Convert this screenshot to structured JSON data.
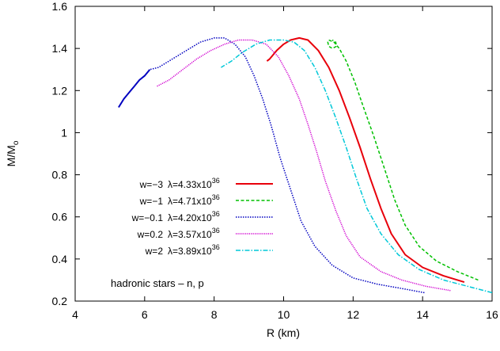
{
  "chart_data": {
    "type": "line",
    "xlabel": "R (km)",
    "ylabel_main": "M/M",
    "ylabel_sub": "o",
    "xlim": [
      4,
      16
    ],
    "ylim": [
      0.2,
      1.6
    ],
    "xticks": [
      "4",
      "6",
      "8",
      "10",
      "12",
      "14",
      "16"
    ],
    "yticks": [
      "0.2",
      "0.4",
      "0.6",
      "0.8",
      "1",
      "1.2",
      "1.4",
      "1.6"
    ],
    "annotation": "hadronic stars – n, p",
    "legend_position": "center-left",
    "series": [
      {
        "name": "w=−3",
        "lambda_text": "λ=4.33x10",
        "lambda_exp": "36",
        "color": "#e8000b",
        "dash": "",
        "width": 2,
        "points": [
          [
            15.2,
            0.29
          ],
          [
            14.6,
            0.32
          ],
          [
            14.0,
            0.36
          ],
          [
            13.5,
            0.42
          ],
          [
            13.1,
            0.52
          ],
          [
            12.8,
            0.64
          ],
          [
            12.5,
            0.78
          ],
          [
            12.2,
            0.93
          ],
          [
            11.9,
            1.07
          ],
          [
            11.6,
            1.2
          ],
          [
            11.3,
            1.31
          ],
          [
            11.0,
            1.39
          ],
          [
            10.7,
            1.44
          ],
          [
            10.45,
            1.45
          ],
          [
            10.2,
            1.44
          ],
          [
            10.0,
            1.42
          ],
          [
            9.8,
            1.39
          ],
          [
            9.6,
            1.35
          ],
          [
            9.52,
            1.34
          ]
        ]
      },
      {
        "name": "w=−1",
        "lambda_text": "λ=4.71x10",
        "lambda_exp": "36",
        "color": "#00c000",
        "dash": "4,2.5",
        "width": 1.5,
        "points": [
          [
            15.6,
            0.3
          ],
          [
            15.0,
            0.34
          ],
          [
            14.4,
            0.39
          ],
          [
            13.9,
            0.46
          ],
          [
            13.5,
            0.56
          ],
          [
            13.2,
            0.68
          ],
          [
            12.9,
            0.83
          ],
          [
            12.6,
            0.98
          ],
          [
            12.3,
            1.12
          ],
          [
            12.05,
            1.24
          ],
          [
            11.8,
            1.34
          ],
          [
            11.6,
            1.4
          ],
          [
            11.45,
            1.43
          ],
          [
            11.3,
            1.44
          ],
          [
            11.27,
            1.43
          ],
          [
            11.3,
            1.41
          ],
          [
            11.4,
            1.4
          ],
          [
            11.52,
            1.41
          ],
          [
            11.5,
            1.43
          ],
          [
            11.4,
            1.44
          ]
        ]
      },
      {
        "name": "w=−0.1",
        "lambda_text": "λ=4.20x10",
        "lambda_exp": "36",
        "color": "#0000c0",
        "dash": "1.5,1.5",
        "width": 1.5,
        "points": [
          [
            14.05,
            0.24
          ],
          [
            13.4,
            0.26
          ],
          [
            12.7,
            0.28
          ],
          [
            12.0,
            0.31
          ],
          [
            11.4,
            0.37
          ],
          [
            10.9,
            0.46
          ],
          [
            10.5,
            0.58
          ],
          [
            10.2,
            0.73
          ],
          [
            9.9,
            0.88
          ],
          [
            9.65,
            1.03
          ],
          [
            9.4,
            1.16
          ],
          [
            9.15,
            1.27
          ],
          [
            8.9,
            1.36
          ],
          [
            8.6,
            1.42
          ],
          [
            8.3,
            1.45
          ],
          [
            8.0,
            1.45
          ],
          [
            7.6,
            1.43
          ],
          [
            7.2,
            1.39
          ],
          [
            6.8,
            1.35
          ],
          [
            6.4,
            1.31
          ],
          [
            6.15,
            1.3
          ]
        ]
      },
      {
        "name": "w=0.2",
        "lambda_text": "λ=3.57x10",
        "lambda_exp": "36",
        "color": "#d000d0",
        "dash": "1.2,1.2",
        "width": 1.5,
        "points": [
          [
            14.8,
            0.25
          ],
          [
            14.1,
            0.27
          ],
          [
            13.4,
            0.3
          ],
          [
            12.8,
            0.34
          ],
          [
            12.2,
            0.41
          ],
          [
            11.8,
            0.51
          ],
          [
            11.5,
            0.63
          ],
          [
            11.2,
            0.77
          ],
          [
            10.95,
            0.91
          ],
          [
            10.7,
            1.04
          ],
          [
            10.45,
            1.16
          ],
          [
            10.15,
            1.27
          ],
          [
            9.85,
            1.36
          ],
          [
            9.5,
            1.42
          ],
          [
            9.1,
            1.44
          ],
          [
            8.7,
            1.44
          ],
          [
            8.3,
            1.42
          ],
          [
            7.9,
            1.39
          ],
          [
            7.5,
            1.35
          ],
          [
            7.1,
            1.3
          ],
          [
            6.7,
            1.25
          ],
          [
            6.35,
            1.22
          ]
        ]
      },
      {
        "name": "w=2",
        "lambda_text": "λ=3.89x10",
        "lambda_exp": "36",
        "color": "#00c8d8",
        "dash": "6,2,1.5,2",
        "width": 1.5,
        "points": [
          [
            16.0,
            0.24
          ],
          [
            15.3,
            0.27
          ],
          [
            14.6,
            0.3
          ],
          [
            13.9,
            0.35
          ],
          [
            13.3,
            0.42
          ],
          [
            12.8,
            0.52
          ],
          [
            12.4,
            0.64
          ],
          [
            12.1,
            0.78
          ],
          [
            11.8,
            0.93
          ],
          [
            11.5,
            1.07
          ],
          [
            11.2,
            1.2
          ],
          [
            10.9,
            1.31
          ],
          [
            10.6,
            1.39
          ],
          [
            10.3,
            1.43
          ],
          [
            10.0,
            1.44
          ],
          [
            9.6,
            1.44
          ],
          [
            9.2,
            1.42
          ],
          [
            8.8,
            1.38
          ],
          [
            8.5,
            1.34
          ],
          [
            8.2,
            1.31
          ]
        ]
      },
      {
        "name": "",
        "color": "#0000c0",
        "dash": "",
        "width": 2,
        "points": [
          [
            5.25,
            1.12
          ],
          [
            5.4,
            1.16
          ],
          [
            5.55,
            1.19
          ],
          [
            5.7,
            1.22
          ],
          [
            5.85,
            1.25
          ],
          [
            6.0,
            1.27
          ],
          [
            6.15,
            1.3
          ]
        ]
      }
    ]
  }
}
